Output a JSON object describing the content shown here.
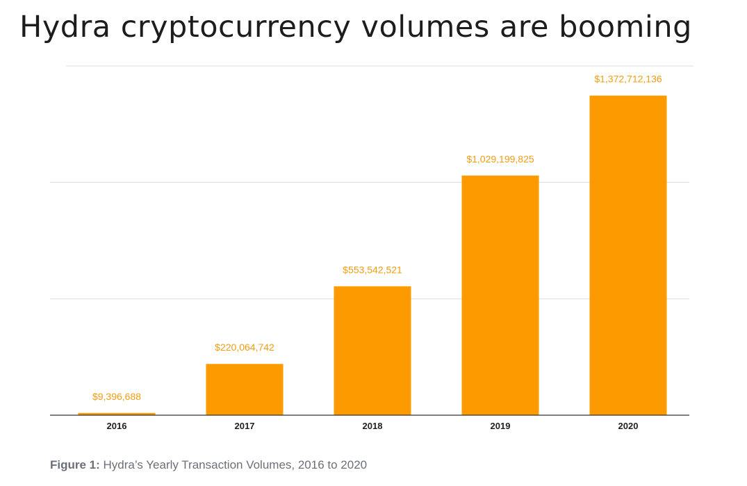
{
  "title": "Hydra cryptocurrency volumes are booming",
  "caption": {
    "prefix": "Figure 1:",
    "text": " Hydra’s Yearly Transaction Volumes, 2016 to 2020"
  },
  "chart_data": {
    "type": "bar",
    "title": "",
    "xlabel": "",
    "ylabel": "",
    "categories": [
      "2016",
      "2017",
      "2018",
      "2019",
      "2020"
    ],
    "values": [
      9396688,
      220064742,
      553542521,
      1029199825,
      1372712136
    ],
    "data_labels": [
      "$9,396,688",
      "$220,064,742",
      "$553,542,521",
      "$1,029,199,825",
      "$1,372,712,136"
    ],
    "ylim": [
      0,
      1500000000
    ],
    "y_gridlines": [
      500000000,
      1000000000,
      1500000000
    ],
    "grid": true,
    "legend": "none",
    "bar_color": "#fc9a00",
    "label_color": "#f39c12"
  }
}
